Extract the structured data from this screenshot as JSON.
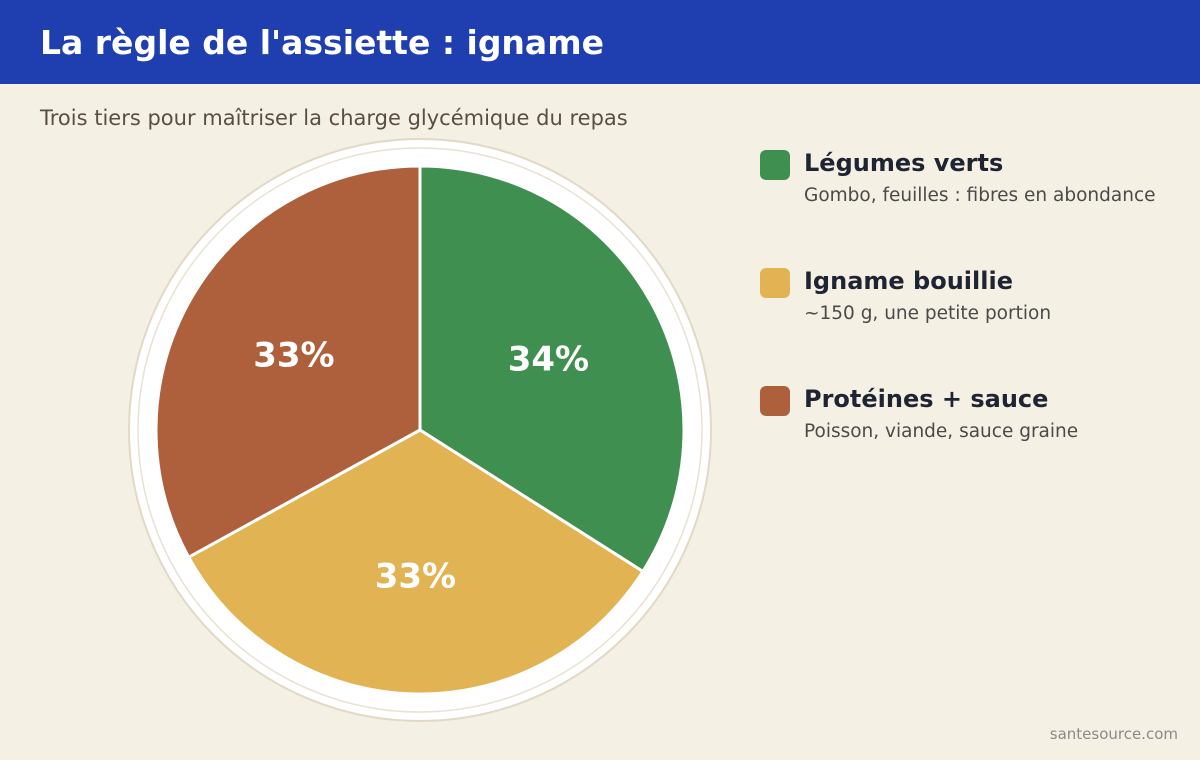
{
  "header": {
    "title": "La règle de l'assiette : igname"
  },
  "subtitle": "Trois tiers pour maîtriser la charge glycémique du repas",
  "source": "santesource.com",
  "colors": {
    "header_bg": "#1f3eb0",
    "background": "#f5f0e4"
  },
  "chart_data": {
    "type": "pie",
    "title": "",
    "legend_position": "right",
    "slices": [
      {
        "label": "Légumes verts",
        "value": 34,
        "value_label": "34%",
        "description": "Gombo, feuilles : fibres en abondance",
        "color": "#3f8f50"
      },
      {
        "label": "Igname bouillie",
        "value": 33,
        "value_label": "33%",
        "description": "~150 g, une petite portion",
        "color": "#e1b352"
      },
      {
        "label": "Protéines + sauce",
        "value": 33,
        "value_label": "33%",
        "description": "Poisson, viande, sauce graine",
        "color": "#ad603b"
      }
    ]
  }
}
